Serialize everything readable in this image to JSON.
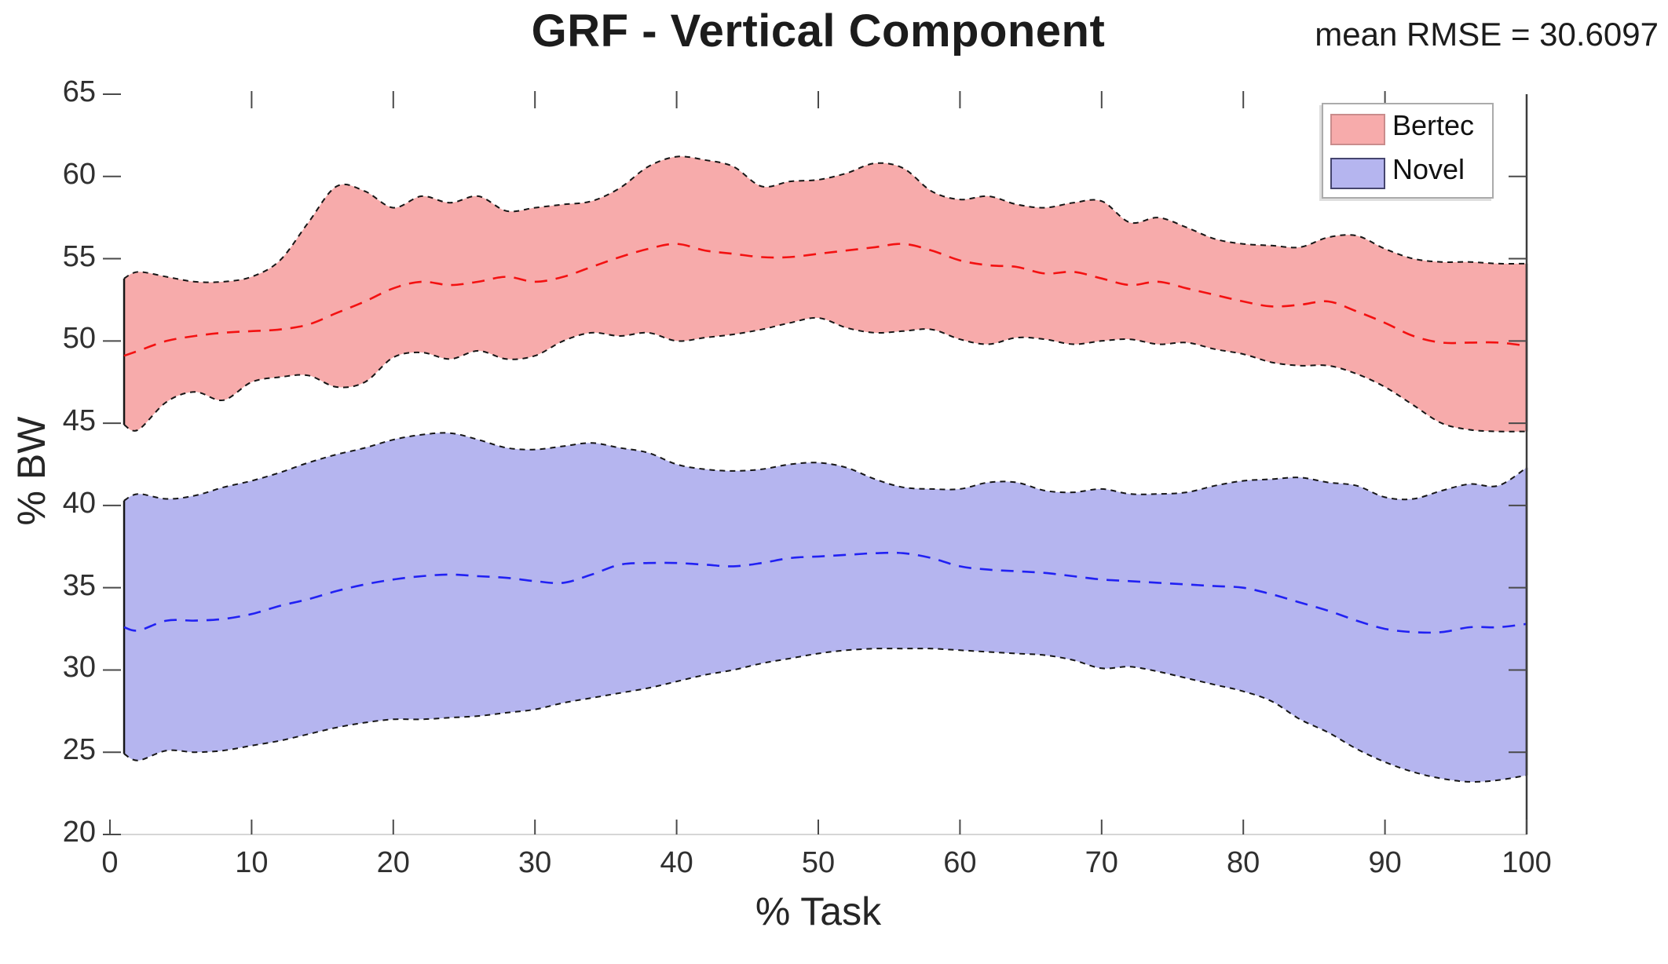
{
  "legend": {
    "position": "top-right",
    "entries": [
      {
        "label": "Bertec",
        "swatch_color": "#f7abab",
        "swatch_edge": "#c98c8c"
      },
      {
        "label": "Novel",
        "swatch_color": "#b5b5ef",
        "swatch_edge": "#45456e"
      }
    ]
  },
  "axes": {
    "x_ticks": [
      0,
      10,
      20,
      30,
      40,
      50,
      60,
      70,
      80,
      90,
      100
    ],
    "y_ticks": [
      20,
      25,
      30,
      35,
      40,
      45,
      50,
      55,
      60,
      65
    ],
    "grid": false
  },
  "colors": {
    "bertec_fill": "#f7abab",
    "bertec_mean_line": "#f31111",
    "novel_fill": "#b5b5ef",
    "novel_mean_line": "#2121f3",
    "band_edge": "#161616",
    "spine_right": "#3c3c3c",
    "spine_bottom": "#d6d6d6",
    "tick_color": "#4a4a4a",
    "text_color": "#1c1c1c"
  },
  "chart_data": {
    "type": "area",
    "title": "GRF - Vertical Component",
    "annotation": "mean RMSE = 30.6097",
    "xlabel": "% Task",
    "ylabel": "% BW",
    "xlim": [
      0,
      100
    ],
    "ylim": [
      20,
      65
    ],
    "legend_entries": [
      "Bertec",
      "Novel"
    ],
    "x": [
      1,
      2,
      4,
      6,
      8,
      10,
      12,
      14,
      16,
      18,
      20,
      22,
      24,
      26,
      28,
      30,
      32,
      34,
      36,
      38,
      40,
      42,
      44,
      46,
      48,
      50,
      52,
      54,
      56,
      58,
      60,
      62,
      64,
      66,
      68,
      70,
      72,
      74,
      76,
      78,
      80,
      82,
      84,
      86,
      88,
      90,
      92,
      94,
      96,
      98,
      100
    ],
    "series": [
      {
        "name": "Bertec",
        "style": "dashed mean line with shaded min-max band",
        "upper": [
          53.8,
          54.2,
          53.9,
          53.6,
          53.6,
          53.9,
          54.9,
          57.2,
          59.4,
          59.1,
          58.1,
          58.8,
          58.4,
          58.8,
          57.9,
          58.1,
          58.3,
          58.5,
          59.3,
          60.6,
          61.2,
          61.0,
          60.6,
          59.4,
          59.7,
          59.8,
          60.2,
          60.8,
          60.5,
          59.1,
          58.6,
          58.8,
          58.3,
          58.1,
          58.4,
          58.5,
          57.2,
          57.5,
          56.9,
          56.2,
          55.9,
          55.8,
          55.7,
          56.3,
          56.4,
          55.6,
          55.0,
          54.8,
          54.8,
          54.7,
          54.7
        ],
        "mean": [
          49.1,
          49.4,
          50.0,
          50.3,
          50.5,
          50.6,
          50.7,
          51.0,
          51.7,
          52.4,
          53.2,
          53.6,
          53.4,
          53.6,
          53.9,
          53.6,
          53.9,
          54.5,
          55.1,
          55.6,
          55.9,
          55.5,
          55.3,
          55.1,
          55.1,
          55.3,
          55.5,
          55.7,
          55.9,
          55.5,
          54.9,
          54.6,
          54.5,
          54.1,
          54.2,
          53.8,
          53.4,
          53.6,
          53.2,
          52.8,
          52.4,
          52.1,
          52.2,
          52.4,
          51.8,
          51.1,
          50.3,
          49.9,
          49.9,
          49.9,
          49.7
        ],
        "lower": [
          44.9,
          44.6,
          46.3,
          46.9,
          46.4,
          47.5,
          47.8,
          47.9,
          47.2,
          47.5,
          49.0,
          49.3,
          48.9,
          49.4,
          48.9,
          49.1,
          50.0,
          50.5,
          50.3,
          50.5,
          50.0,
          50.2,
          50.4,
          50.7,
          51.1,
          51.4,
          50.8,
          50.5,
          50.6,
          50.7,
          50.1,
          49.8,
          50.2,
          50.1,
          49.8,
          50.0,
          50.1,
          49.8,
          49.9,
          49.5,
          49.2,
          48.7,
          48.5,
          48.5,
          48.0,
          47.2,
          46.1,
          45.0,
          44.6,
          44.5,
          44.5
        ]
      },
      {
        "name": "Novel",
        "style": "dashed mean line with shaded min-max band",
        "upper": [
          40.3,
          40.7,
          40.4,
          40.6,
          41.1,
          41.5,
          42.0,
          42.6,
          43.1,
          43.5,
          44.0,
          44.3,
          44.4,
          44.0,
          43.5,
          43.4,
          43.6,
          43.8,
          43.5,
          43.2,
          42.5,
          42.2,
          42.1,
          42.2,
          42.5,
          42.6,
          42.3,
          41.6,
          41.1,
          41.0,
          41.0,
          41.4,
          41.4,
          40.9,
          40.8,
          41.0,
          40.7,
          40.7,
          40.8,
          41.2,
          41.5,
          41.6,
          41.7,
          41.4,
          41.2,
          40.5,
          40.4,
          40.9,
          41.3,
          41.2,
          42.3
        ],
        "mean": [
          32.6,
          32.4,
          33.0,
          33.0,
          33.1,
          33.4,
          33.9,
          34.3,
          34.8,
          35.2,
          35.5,
          35.7,
          35.8,
          35.7,
          35.6,
          35.4,
          35.3,
          35.8,
          36.4,
          36.5,
          36.5,
          36.4,
          36.3,
          36.5,
          36.8,
          36.9,
          37.0,
          37.1,
          37.1,
          36.8,
          36.3,
          36.1,
          36.0,
          35.9,
          35.7,
          35.5,
          35.4,
          35.3,
          35.2,
          35.1,
          35.0,
          34.6,
          34.1,
          33.6,
          33.0,
          32.5,
          32.3,
          32.3,
          32.6,
          32.6,
          32.8
        ],
        "lower": [
          24.9,
          24.5,
          25.1,
          25.0,
          25.1,
          25.4,
          25.7,
          26.1,
          26.5,
          26.8,
          27.0,
          27.0,
          27.1,
          27.2,
          27.4,
          27.6,
          28.0,
          28.3,
          28.6,
          28.9,
          29.3,
          29.7,
          30.0,
          30.4,
          30.7,
          31.0,
          31.2,
          31.3,
          31.3,
          31.3,
          31.2,
          31.1,
          31.0,
          30.9,
          30.6,
          30.1,
          30.2,
          29.9,
          29.5,
          29.1,
          28.7,
          28.1,
          27.0,
          26.2,
          25.2,
          24.4,
          23.8,
          23.4,
          23.2,
          23.3,
          23.6
        ]
      }
    ]
  }
}
